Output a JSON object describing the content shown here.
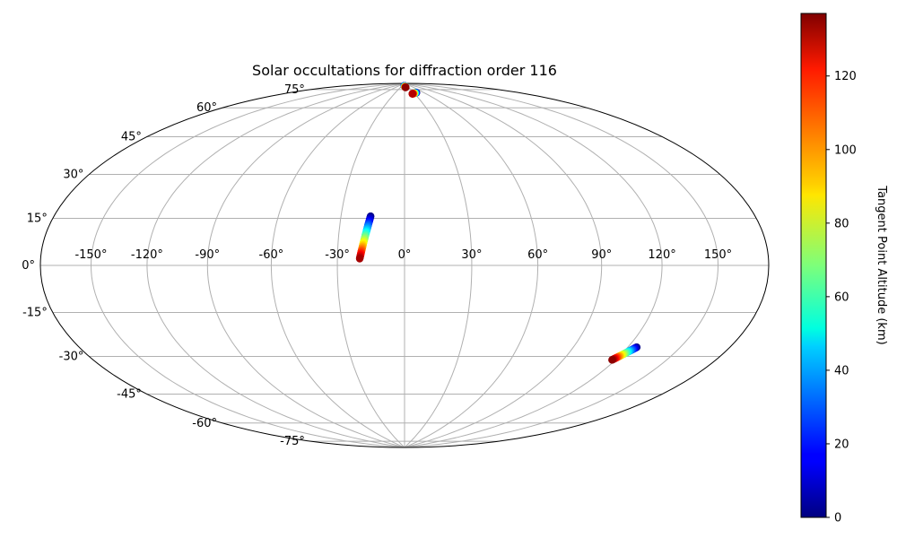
{
  "chart_data": {
    "type": "scatter",
    "projection": "hammer",
    "title": "Solar occultations for diffraction order 116",
    "grid": true,
    "lon_ticks": [
      -150,
      -120,
      -90,
      -60,
      -30,
      0,
      30,
      60,
      90,
      120,
      150
    ],
    "lat_ticks": [
      -75,
      -60,
      -45,
      -30,
      -15,
      0,
      15,
      30,
      45,
      60,
      75
    ],
    "lon_tick_labels": [
      "-150°",
      "-120°",
      "-90°",
      "-60°",
      "-30°",
      "0°",
      "30°",
      "60°",
      "90°",
      "120°",
      "150°"
    ],
    "lat_tick_labels": [
      "-75°",
      "-60°",
      "-45°",
      "-30°",
      "-15°",
      "0°",
      "15°",
      "30°",
      "45°",
      "60°",
      "75°"
    ],
    "colorbar": {
      "label": "Tangent Point Altitude (km)",
      "colormap": "jet",
      "range": [
        0,
        137
      ],
      "ticks": [
        0,
        20,
        40,
        60,
        80,
        100,
        120
      ],
      "tick_labels": [
        "0",
        "20",
        "40",
        "60",
        "80",
        "100",
        "120"
      ]
    },
    "tracks": [
      {
        "start": {
          "lon": -16,
          "lat": 22,
          "alt": 0
        },
        "end": {
          "lon": -20,
          "lat": 3,
          "alt": 132
        }
      },
      {
        "start": {
          "lon": 125,
          "lat": -32,
          "alt": 0
        },
        "end": {
          "lon": 118,
          "lat": -38,
          "alt": 135
        }
      },
      {
        "start": {
          "lon": -2,
          "lat": 88.5,
          "alt": 0
        },
        "end": {
          "lon": 8,
          "lat": 87.5,
          "alt": 135
        }
      },
      {
        "start": {
          "lon": 38,
          "lat": 84,
          "alt": 0
        },
        "end": {
          "lon": 23,
          "lat": 83.5,
          "alt": 130
        }
      }
    ]
  }
}
